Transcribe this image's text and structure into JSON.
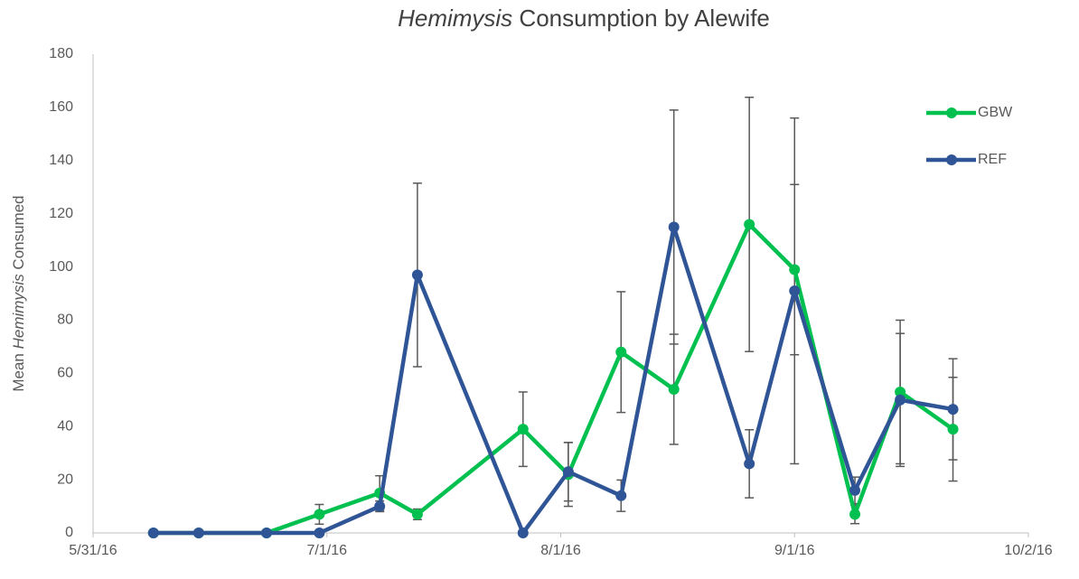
{
  "chart_data": {
    "type": "line",
    "title": [
      "Hemimysis",
      " Consumption by Alewife"
    ],
    "y_label": [
      "Mean ",
      "Hemimysis",
      " Consumed"
    ],
    "x": [
      "2016-06-08",
      "2016-06-14",
      "2016-06-23",
      "2016-06-30",
      "2016-07-08",
      "2016-07-13",
      "2016-07-27",
      "2016-08-02",
      "2016-08-09",
      "2016-08-16",
      "2016-08-26",
      "2016-09-01",
      "2016-09-09",
      "2016-09-15",
      "2016-09-22"
    ],
    "series": [
      {
        "name": "GBW",
        "color": "#00c050",
        "values": [
          0,
          0,
          0,
          7,
          15,
          7,
          39,
          22,
          68,
          54,
          116,
          99,
          7,
          53,
          39
        ],
        "errors": [
          0,
          0,
          0,
          3.7,
          6.5,
          2,
          14,
          12,
          22.7,
          20.7,
          47.8,
          32,
          3.5,
          27,
          19.5
        ]
      },
      {
        "name": "REF",
        "color": "#2f5597",
        "values": [
          0,
          0,
          0,
          0,
          10,
          97,
          0,
          23,
          14,
          115,
          26,
          91,
          16,
          50,
          46.5
        ],
        "errors": [
          0,
          0,
          0,
          0,
          2,
          34.5,
          0,
          11,
          5.9,
          44,
          12.8,
          65,
          5,
          25,
          19
        ]
      }
    ],
    "xlim": [
      "2016-05-31",
      "2016-10-02"
    ],
    "xticks": [
      {
        "value": "2016-05-31",
        "label": "5/31/16"
      },
      {
        "value": "2016-07-01",
        "label": "7/1/16"
      },
      {
        "value": "2016-08-01",
        "label": "8/1/16"
      },
      {
        "value": "2016-09-01",
        "label": "9/1/16"
      },
      {
        "value": "2016-10-02",
        "label": "10/2/16"
      }
    ],
    "ylim": [
      0,
      180
    ],
    "yticks": [
      0,
      20,
      40,
      60,
      80,
      100,
      120,
      140,
      160,
      180
    ],
    "grid": false,
    "legend": "upper-right",
    "error_color": "#595959"
  }
}
